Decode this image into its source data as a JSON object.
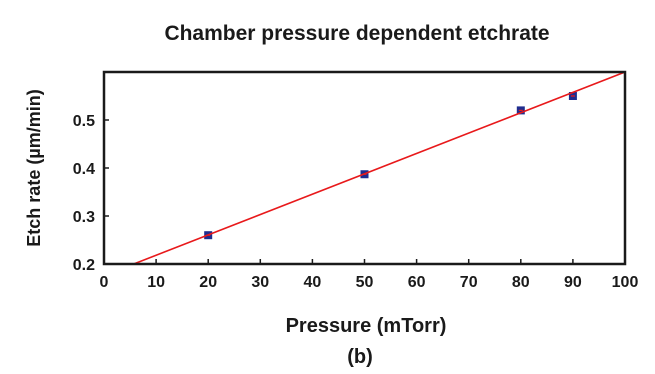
{
  "chart_data": {
    "type": "scatter",
    "title": "Chamber pressure dependent etchrate",
    "xlabel": "Pressure (mTorr)",
    "ylabel": "Etch rate (µm/min)",
    "panel_label": "(b)",
    "xlim": [
      0,
      100
    ],
    "ylim": [
      0.2,
      0.6
    ],
    "x_ticks": [
      0,
      10,
      20,
      30,
      40,
      50,
      60,
      70,
      80,
      90,
      100
    ],
    "y_ticks": [
      0.2,
      0.3,
      0.4,
      0.5
    ],
    "grid": false,
    "series": [
      {
        "type": "scatter",
        "color": "#1f2d8f",
        "x": [
          20,
          50,
          80,
          90
        ],
        "y": [
          0.26,
          0.387,
          0.52,
          0.55
        ]
      },
      {
        "type": "line",
        "color": "#e8191b",
        "x": [
          5.7,
          100
        ],
        "y": [
          0.2,
          0.6
        ]
      }
    ]
  }
}
